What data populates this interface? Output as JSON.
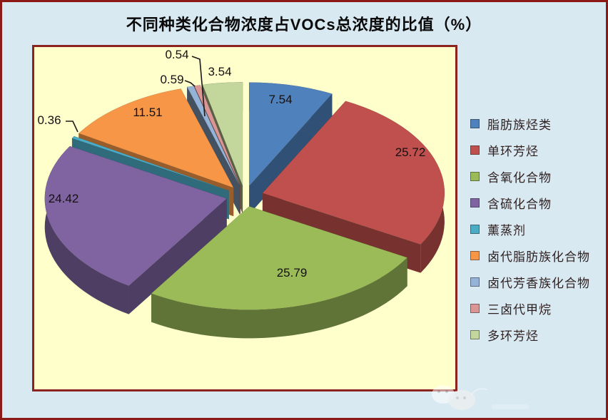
{
  "chart_data": {
    "type": "pie",
    "style": "3d-exploded",
    "title": "不同种类化合物浓度占VOCs总浓度的比值（%）",
    "unit": "%",
    "legend_position": "right",
    "plot_background": "#ffffcc",
    "page_background": "#d9e9f2",
    "border_color": "#8b1a17",
    "slices": [
      {
        "label": "脂肪族烃类",
        "value": 7.54,
        "color": "#4F81BD"
      },
      {
        "label": "单环芳烃",
        "value": 25.72,
        "color": "#C0504D"
      },
      {
        "label": "含氧化合物",
        "value": 25.79,
        "color": "#9BBB59"
      },
      {
        "label": "含硫化合物",
        "value": 24.42,
        "color": "#8064A2"
      },
      {
        "label": "薰蒸剂",
        "value": 0.36,
        "color": "#4BACC6"
      },
      {
        "label": "卤代脂肪族化合物",
        "value": 11.51,
        "color": "#F79646"
      },
      {
        "label": "卤代芳香族化合物",
        "value": 0.59,
        "color": "#95B3D7"
      },
      {
        "label": "三卤代甲烷",
        "value": 0.54,
        "color": "#D99694"
      },
      {
        "label": "多环芳烃",
        "value": 3.54,
        "color": "#C3D69B"
      }
    ]
  }
}
